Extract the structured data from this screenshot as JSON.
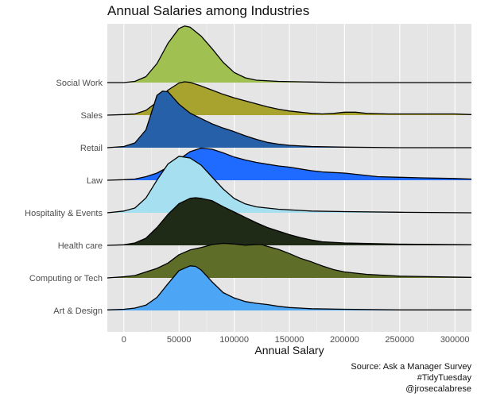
{
  "chart_data": {
    "type": "ridgeline",
    "title": "Annual Salaries among Industries",
    "xlabel": "Annual Salary",
    "ylabel": "",
    "xlim": [
      -15000,
      315000
    ],
    "x_ticks": [
      0,
      50000,
      100000,
      150000,
      200000,
      250000,
      300000
    ],
    "x_tick_labels": [
      "0",
      "50000",
      "100000",
      "150000",
      "200000",
      "250000",
      "300000"
    ],
    "grid": true,
    "caption": [
      "Source: Ask a Manager Survey",
      "#TidyTuesday",
      "@jrosecalabrese"
    ],
    "series": [
      {
        "name": "Art & Design",
        "color": "#4da6f5",
        "points": [
          [
            -15000,
            0.01
          ],
          [
            0,
            0.02
          ],
          [
            10000,
            0.04
          ],
          [
            20000,
            0.09
          ],
          [
            30000,
            0.22
          ],
          [
            40000,
            0.45
          ],
          [
            50000,
            0.67
          ],
          [
            60000,
            0.75
          ],
          [
            65000,
            0.74
          ],
          [
            70000,
            0.68
          ],
          [
            80000,
            0.48
          ],
          [
            90000,
            0.3
          ],
          [
            100000,
            0.21
          ],
          [
            110000,
            0.15
          ],
          [
            120000,
            0.12
          ],
          [
            130000,
            0.1
          ],
          [
            140000,
            0.07
          ],
          [
            150000,
            0.05
          ],
          [
            170000,
            0.03
          ],
          [
            200000,
            0.02
          ],
          [
            250000,
            0.01
          ],
          [
            300000,
            0.01
          ],
          [
            315000,
            0.01
          ]
        ]
      },
      {
        "name": "Computing or Tech",
        "color": "#5e6e29",
        "points": [
          [
            -15000,
            0.0
          ],
          [
            0,
            0.02
          ],
          [
            10000,
            0.04
          ],
          [
            20000,
            0.1
          ],
          [
            30000,
            0.16
          ],
          [
            40000,
            0.25
          ],
          [
            50000,
            0.39
          ],
          [
            60000,
            0.47
          ],
          [
            70000,
            0.51
          ],
          [
            80000,
            0.56
          ],
          [
            90000,
            0.58
          ],
          [
            100000,
            0.57
          ],
          [
            110000,
            0.55
          ],
          [
            120000,
            0.56
          ],
          [
            125000,
            0.56
          ],
          [
            130000,
            0.53
          ],
          [
            140000,
            0.48
          ],
          [
            150000,
            0.41
          ],
          [
            160000,
            0.33
          ],
          [
            170000,
            0.27
          ],
          [
            180000,
            0.2
          ],
          [
            190000,
            0.14
          ],
          [
            200000,
            0.1
          ],
          [
            220000,
            0.06
          ],
          [
            250000,
            0.03
          ],
          [
            280000,
            0.02
          ],
          [
            315000,
            0.01
          ]
        ]
      },
      {
        "name": "Health care",
        "color": "#1f2a17",
        "points": [
          [
            -15000,
            0.0
          ],
          [
            0,
            0.01
          ],
          [
            10000,
            0.04
          ],
          [
            20000,
            0.12
          ],
          [
            30000,
            0.3
          ],
          [
            40000,
            0.52
          ],
          [
            50000,
            0.7
          ],
          [
            60000,
            0.79
          ],
          [
            65000,
            0.8
          ],
          [
            70000,
            0.79
          ],
          [
            80000,
            0.75
          ],
          [
            90000,
            0.65
          ],
          [
            100000,
            0.56
          ],
          [
            110000,
            0.47
          ],
          [
            120000,
            0.38
          ],
          [
            130000,
            0.3
          ],
          [
            140000,
            0.24
          ],
          [
            150000,
            0.18
          ],
          [
            160000,
            0.13
          ],
          [
            170000,
            0.09
          ],
          [
            180000,
            0.06
          ],
          [
            200000,
            0.04
          ],
          [
            250000,
            0.02
          ],
          [
            315000,
            0.01
          ]
        ]
      },
      {
        "name": "Hospitality & Events",
        "color": "#a6dff0",
        "points": [
          [
            -15000,
            0.0
          ],
          [
            0,
            0.03
          ],
          [
            10000,
            0.08
          ],
          [
            20000,
            0.25
          ],
          [
            30000,
            0.55
          ],
          [
            40000,
            0.82
          ],
          [
            50000,
            0.95
          ],
          [
            60000,
            0.92
          ],
          [
            70000,
            0.8
          ],
          [
            80000,
            0.6
          ],
          [
            90000,
            0.4
          ],
          [
            100000,
            0.24
          ],
          [
            110000,
            0.15
          ],
          [
            120000,
            0.1
          ],
          [
            130000,
            0.08
          ],
          [
            140000,
            0.06
          ],
          [
            150000,
            0.05
          ],
          [
            170000,
            0.03
          ],
          [
            200000,
            0.02
          ],
          [
            250000,
            0.01
          ],
          [
            315000,
            0.0
          ]
        ]
      },
      {
        "name": "Law",
        "color": "#1f6bff",
        "points": [
          [
            -15000,
            0.0
          ],
          [
            0,
            0.01
          ],
          [
            10000,
            0.02
          ],
          [
            20000,
            0.06
          ],
          [
            30000,
            0.12
          ],
          [
            40000,
            0.22
          ],
          [
            50000,
            0.35
          ],
          [
            60000,
            0.48
          ],
          [
            70000,
            0.54
          ],
          [
            80000,
            0.52
          ],
          [
            90000,
            0.46
          ],
          [
            100000,
            0.39
          ],
          [
            110000,
            0.34
          ],
          [
            120000,
            0.3
          ],
          [
            130000,
            0.27
          ],
          [
            140000,
            0.24
          ],
          [
            150000,
            0.22
          ],
          [
            160000,
            0.19
          ],
          [
            170000,
            0.16
          ],
          [
            180000,
            0.14
          ],
          [
            190000,
            0.13
          ],
          [
            200000,
            0.12
          ],
          [
            210000,
            0.1
          ],
          [
            230000,
            0.06
          ],
          [
            250000,
            0.05
          ],
          [
            270000,
            0.04
          ],
          [
            300000,
            0.03
          ],
          [
            315000,
            0.02
          ]
        ]
      },
      {
        "name": "Retail",
        "color": "#2660a8",
        "points": [
          [
            -15000,
            0.0
          ],
          [
            0,
            0.02
          ],
          [
            10000,
            0.08
          ],
          [
            20000,
            0.3
          ],
          [
            30000,
            0.88
          ],
          [
            35000,
            0.95
          ],
          [
            40000,
            0.94
          ],
          [
            50000,
            0.73
          ],
          [
            60000,
            0.58
          ],
          [
            70000,
            0.49
          ],
          [
            80000,
            0.4
          ],
          [
            90000,
            0.33
          ],
          [
            100000,
            0.27
          ],
          [
            110000,
            0.2
          ],
          [
            120000,
            0.14
          ],
          [
            130000,
            0.09
          ],
          [
            140000,
            0.06
          ],
          [
            150000,
            0.04
          ],
          [
            170000,
            0.02
          ],
          [
            200000,
            0.01
          ],
          [
            250000,
            0.0
          ],
          [
            315000,
            0.0
          ]
        ]
      },
      {
        "name": "Sales",
        "color": "#a8a22e",
        "points": [
          [
            -15000,
            0.0
          ],
          [
            0,
            0.01
          ],
          [
            10000,
            0.02
          ],
          [
            20000,
            0.08
          ],
          [
            30000,
            0.22
          ],
          [
            40000,
            0.42
          ],
          [
            50000,
            0.54
          ],
          [
            55000,
            0.56
          ],
          [
            60000,
            0.55
          ],
          [
            70000,
            0.49
          ],
          [
            80000,
            0.42
          ],
          [
            90000,
            0.35
          ],
          [
            100000,
            0.29
          ],
          [
            110000,
            0.24
          ],
          [
            120000,
            0.19
          ],
          [
            130000,
            0.14
          ],
          [
            140000,
            0.1
          ],
          [
            150000,
            0.07
          ],
          [
            160000,
            0.05
          ],
          [
            170000,
            0.03
          ],
          [
            180000,
            0.02
          ],
          [
            190000,
            0.03
          ],
          [
            200000,
            0.05
          ],
          [
            210000,
            0.05
          ],
          [
            220000,
            0.03
          ],
          [
            240000,
            0.02
          ],
          [
            270000,
            0.02
          ],
          [
            300000,
            0.02
          ],
          [
            315000,
            0.01
          ]
        ]
      },
      {
        "name": "Social Work",
        "color": "#a0c152",
        "points": [
          [
            -15000,
            0.0
          ],
          [
            0,
            0.0
          ],
          [
            10000,
            0.02
          ],
          [
            20000,
            0.1
          ],
          [
            30000,
            0.32
          ],
          [
            40000,
            0.66
          ],
          [
            50000,
            0.91
          ],
          [
            55000,
            0.95
          ],
          [
            60000,
            0.93
          ],
          [
            70000,
            0.78
          ],
          [
            80000,
            0.57
          ],
          [
            90000,
            0.34
          ],
          [
            100000,
            0.17
          ],
          [
            110000,
            0.08
          ],
          [
            120000,
            0.04
          ],
          [
            140000,
            0.02
          ],
          [
            170000,
            0.01
          ],
          [
            200000,
            0.0
          ],
          [
            250000,
            0.0
          ],
          [
            315000,
            0.0
          ]
        ]
      }
    ]
  }
}
